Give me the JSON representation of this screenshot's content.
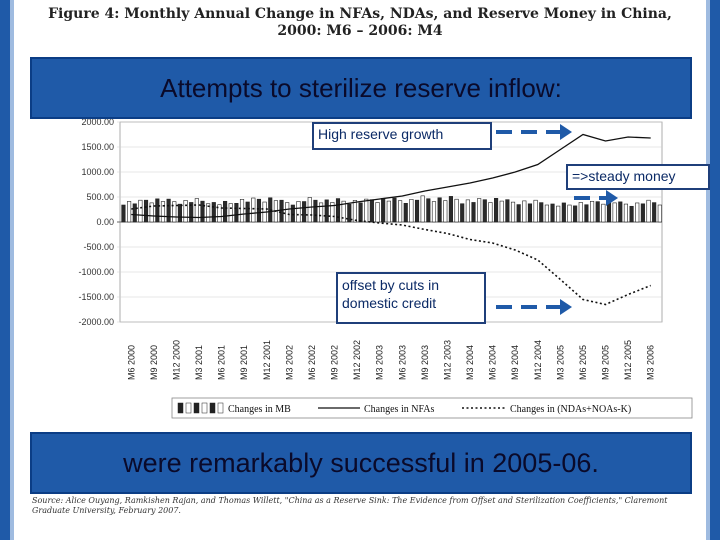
{
  "figure_title_line1": "Figure 4: Monthly Annual Change in NFAs, NDAs, and Reserve Money in China,",
  "figure_title_line2": "2000: M6 – 2006: M4",
  "banner_top": "Attempts to sterilize reserve inflow:",
  "banner_bottom": "were remarkably successful in 2005-06.",
  "callouts": {
    "high_reserve": "High reserve growth",
    "steady_money": "=>steady money",
    "offset": "offset by cuts in domestic credit"
  },
  "source": "Source: Alice Ouyang, Ramkishen Rajan, and Thomas Willett, \"China as a Reserve Sink: The Evidence from Offset and Sterilization Coefficients,\" Claremont Graduate University, February 2007.",
  "colors": {
    "banner": "#1f5aa8",
    "arrow": "#1f5aa8",
    "frame": "#1f5aa8"
  },
  "chart_data": {
    "type": "bar",
    "ylim": [
      -2000,
      2000
    ],
    "y_ticks": [
      "2000.00",
      "1500.00",
      "1000.00",
      "500.00",
      "0.00",
      "-500.00",
      "-1000.00",
      "-1500.00",
      "-2000.00"
    ],
    "y_tick_values": [
      2000,
      1500,
      1000,
      500,
      0,
      -500,
      -1000,
      -1500,
      -2000
    ],
    "categories": [
      "M6 2000",
      "M9 2000",
      "M12 2000",
      "M3 2001",
      "M6 2001",
      "M9 2001",
      "M12 2001",
      "M3 2002",
      "M6 2002",
      "M9 2002",
      "M12 2002",
      "M3 2003",
      "M6 2003",
      "M9 2003",
      "M12 2003",
      "M3 2004",
      "M6 2004",
      "M9 2004",
      "M12 2004",
      "M3 2005",
      "M6 2005",
      "M9 2005",
      "M12 2005",
      "M3 2006"
    ],
    "x_tick_labels": [
      "M6 2000",
      "M9 2000",
      "M12 2000",
      "M3 2001",
      "M6 2001",
      "M9 2001",
      "M12 2001",
      "M3 2002",
      "M6 2002",
      "M9 2002",
      "M12 2002",
      "M3 2003",
      "M6 2003",
      "M9 2003",
      "M12 2003",
      "M3 2004",
      "M6 2004",
      "M9 2004",
      "M12 2004",
      "M3 2005",
      "M6 2005",
      "M9 2005",
      "M12 2005",
      "M3 2006"
    ],
    "series": [
      {
        "name": "Changes in MB",
        "kind": "bar",
        "color": "#222222",
        "values": [
          400,
          450,
          420,
          430,
          380,
          440,
          470,
          400,
          450,
          430,
          420,
          460,
          440,
          480,
          470,
          430,
          460,
          410,
          400,
          350,
          380,
          420,
          370,
          400
        ]
      },
      {
        "name": "Changes in NFAs",
        "kind": "line",
        "color": "#111111",
        "values": [
          150,
          120,
          100,
          90,
          110,
          160,
          200,
          260,
          300,
          330,
          400,
          460,
          520,
          620,
          700,
          780,
          880,
          1000,
          1150,
          1450,
          1750,
          1620,
          1700,
          1680
        ]
      },
      {
        "name": "Changes in (NDAs+NOAs-K)",
        "kind": "dotted",
        "color": "#111111",
        "values": [
          260,
          320,
          330,
          340,
          280,
          270,
          260,
          150,
          140,
          110,
          30,
          -20,
          -60,
          -150,
          -230,
          -350,
          -420,
          -560,
          -760,
          -1150,
          -1550,
          -1650,
          -1450,
          -1270
        ]
      }
    ],
    "legend": [
      "Changes in MB",
      "Changes in NFAs",
      "Changes in (NDAs+NOAs-K)"
    ],
    "legend_position": "bottom"
  }
}
